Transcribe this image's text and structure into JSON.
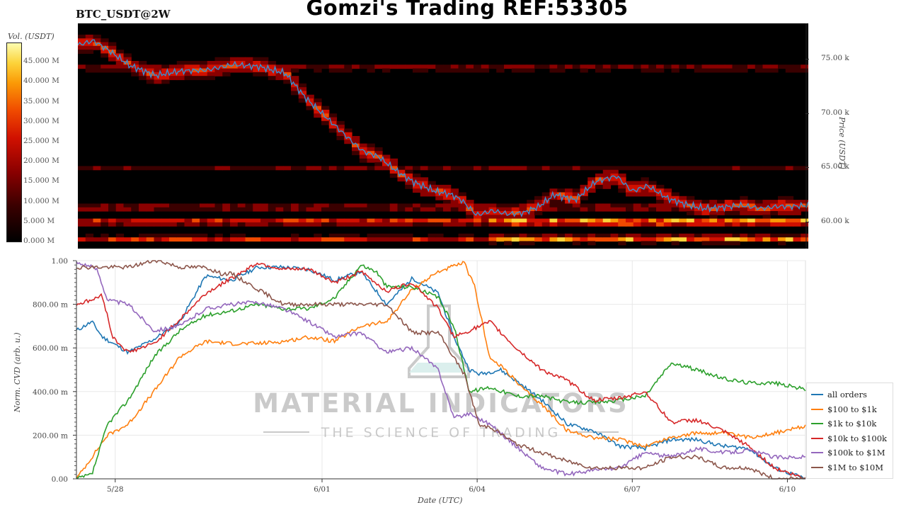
{
  "header": {
    "title": "Gomzi's Trading REF:53305",
    "pair": "BTC_USDT@2W"
  },
  "colorbar": {
    "title": "Vol. (USDT)",
    "ticks": [
      "0.000 M",
      "5.000 M",
      "10.000 M",
      "15.000 M",
      "20.000 M",
      "25.000 M",
      "30.000 M",
      "35.000 M",
      "40.000 M",
      "45.000 M"
    ],
    "min": 0,
    "max": 50000000
  },
  "watermark": {
    "brand": "MATERIAL INDICATORS",
    "tagline": "THE SCIENCE OF TRADING"
  },
  "chart_data": [
    {
      "type": "heatmap",
      "title": "BTC_USDT@2W",
      "ylabel": "Price (USDT)",
      "y_ticks": [
        "60.00 k",
        "65.00 k",
        "70.00 k",
        "75.00 k"
      ],
      "y_tick_values": [
        60000,
        65000,
        70000,
        75000
      ],
      "ylim": [
        57500,
        78300
      ],
      "x_domain": [
        "5/27 06:00",
        "6/10 10:00"
      ],
      "colorscale": [
        "#000000",
        "#3a0000",
        "#8a0000",
        "#d01000",
        "#f04a00",
        "#fb9a06",
        "#fcd33a",
        "#ffffff"
      ],
      "price_line_color": "#3a8fd0",
      "price_series": {
        "x_day": [
          0,
          0.3,
          0.6,
          1.0,
          1.5,
          2.0,
          2.5,
          3.0,
          3.5,
          4.0,
          4.4,
          4.8,
          5.2,
          5.5,
          5.8,
          6.2,
          6.5,
          6.9,
          7.2,
          7.4,
          7.7,
          8.0,
          8.3,
          8.6,
          8.9,
          9.2,
          9.6,
          10.0,
          10.4,
          10.7,
          11.0,
          11.4,
          11.8,
          12.1,
          12.4,
          12.8,
          13.2,
          13.5,
          13.8,
          14.1
        ],
        "price": [
          76300,
          76700,
          75800,
          74400,
          73500,
          73900,
          74000,
          74500,
          74300,
          73700,
          71400,
          69600,
          67800,
          66500,
          66000,
          64500,
          63600,
          62800,
          62500,
          62000,
          60600,
          61000,
          60700,
          60800,
          61400,
          62500,
          62000,
          63700,
          64200,
          62800,
          63300,
          62100,
          61500,
          61200,
          61300,
          61500,
          61200,
          61400,
          61400,
          61500
        ]
      },
      "bands": [
        {
          "price": 61300,
          "intensity": 0.55
        },
        {
          "price": 60000,
          "intensity": 0.85
        },
        {
          "price": 58400,
          "intensity": 0.7
        },
        {
          "price": 65000,
          "intensity": 0.35
        },
        {
          "price": 74200,
          "intensity": 0.45
        }
      ]
    },
    {
      "type": "line",
      "xlabel": "Date (UTC)",
      "ylabel": "Norm. CVD (arb. u.)",
      "x_ticks": [
        "5/28",
        "6/01",
        "6/04",
        "6/07",
        "6/10"
      ],
      "x_tick_days": [
        0.75,
        4.75,
        7.75,
        10.75,
        13.75
      ],
      "x_range_days": [
        0,
        14.1
      ],
      "y_ticks": [
        "0.00",
        "200.00 m",
        "400.00 m",
        "600.00 m",
        "800.00 m",
        "1.00"
      ],
      "ylim": [
        0,
        1
      ],
      "grid": true,
      "legend_position": "right",
      "series": [
        {
          "name": "all orders",
          "color": "#1f77b4",
          "x": [
            0,
            0.3,
            0.5,
            1.0,
            1.5,
            2.0,
            2.5,
            3.0,
            3.5,
            4.0,
            4.5,
            5.0,
            5.5,
            6.0,
            6.5,
            7.0,
            7.3,
            7.6,
            7.8,
            8.2,
            8.5,
            9.0,
            9.5,
            10.0,
            10.5,
            11.0,
            11.5,
            12.0,
            12.5,
            13.0,
            13.5,
            14.1
          ],
          "y": [
            0.68,
            0.72,
            0.65,
            0.58,
            0.64,
            0.72,
            0.93,
            0.91,
            0.97,
            0.97,
            0.96,
            0.91,
            0.95,
            0.8,
            0.92,
            0.85,
            0.65,
            0.5,
            0.48,
            0.5,
            0.45,
            0.36,
            0.25,
            0.22,
            0.15,
            0.14,
            0.18,
            0.18,
            0.15,
            0.14,
            0.05,
            0.0
          ]
        },
        {
          "name": "$100 to $1k",
          "color": "#ff7f0e",
          "x": [
            0,
            0.3,
            0.6,
            1.0,
            1.5,
            2.0,
            2.5,
            3.0,
            3.5,
            4.0,
            4.5,
            5.0,
            5.5,
            6.0,
            6.5,
            7.0,
            7.5,
            7.7,
            8.0,
            8.3,
            8.6,
            9.0,
            9.5,
            10.0,
            10.5,
            11.0,
            11.5,
            12.0,
            12.5,
            13.0,
            13.5,
            14.1
          ],
          "y": [
            0.0,
            0.1,
            0.2,
            0.25,
            0.4,
            0.56,
            0.63,
            0.62,
            0.62,
            0.63,
            0.65,
            0.63,
            0.7,
            0.72,
            0.87,
            0.95,
            0.99,
            0.88,
            0.55,
            0.5,
            0.42,
            0.34,
            0.22,
            0.19,
            0.18,
            0.15,
            0.19,
            0.21,
            0.21,
            0.19,
            0.21,
            0.24
          ]
        },
        {
          "name": "$1k to $10k",
          "color": "#2ca02c",
          "x": [
            0,
            0.3,
            0.6,
            1.0,
            1.5,
            2.0,
            2.5,
            3.0,
            3.5,
            4.0,
            4.5,
            5.0,
            5.5,
            5.8,
            6.0,
            6.5,
            7.0,
            7.3,
            7.6,
            8.0,
            8.5,
            9.0,
            9.5,
            10.0,
            10.5,
            11.0,
            11.5,
            12.0,
            12.5,
            13.0,
            13.5,
            14.1
          ],
          "y": [
            0.0,
            0.02,
            0.25,
            0.36,
            0.56,
            0.68,
            0.75,
            0.77,
            0.8,
            0.78,
            0.78,
            0.83,
            0.98,
            0.95,
            0.88,
            0.88,
            0.83,
            0.7,
            0.4,
            0.42,
            0.38,
            0.38,
            0.35,
            0.35,
            0.36,
            0.38,
            0.53,
            0.5,
            0.46,
            0.44,
            0.44,
            0.41
          ]
        },
        {
          "name": "$10k to $100k",
          "color": "#d62728",
          "x": [
            0,
            0.3,
            0.5,
            0.7,
            1.0,
            1.5,
            2.0,
            2.5,
            3.0,
            3.5,
            4.0,
            4.5,
            5.0,
            5.5,
            6.0,
            6.5,
            7.0,
            7.3,
            7.6,
            8.0,
            8.5,
            9.0,
            9.5,
            10.0,
            10.5,
            11.0,
            11.5,
            12.0,
            12.5,
            13.0,
            13.5,
            14.1
          ],
          "y": [
            0.8,
            0.82,
            0.84,
            0.65,
            0.58,
            0.62,
            0.73,
            0.85,
            0.92,
            0.99,
            0.96,
            0.96,
            0.9,
            0.95,
            0.86,
            0.9,
            0.78,
            0.65,
            0.68,
            0.72,
            0.6,
            0.5,
            0.45,
            0.36,
            0.37,
            0.4,
            0.26,
            0.27,
            0.22,
            0.15,
            0.05,
            0.0
          ]
        },
        {
          "name": "$100k to $1M",
          "color": "#9467bd",
          "x": [
            0,
            0.2,
            0.4,
            0.6,
            1.0,
            1.5,
            2.0,
            2.5,
            3.0,
            3.5,
            4.0,
            4.5,
            5.0,
            5.5,
            6.0,
            6.5,
            7.0,
            7.3,
            7.6,
            8.0,
            8.5,
            9.0,
            9.5,
            10.0,
            10.5,
            11.0,
            11.5,
            12.0,
            12.5,
            13.0,
            13.5,
            14.1
          ],
          "y": [
            0.99,
            0.98,
            0.96,
            0.82,
            0.8,
            0.68,
            0.7,
            0.78,
            0.8,
            0.81,
            0.78,
            0.72,
            0.65,
            0.67,
            0.58,
            0.6,
            0.5,
            0.28,
            0.3,
            0.25,
            0.15,
            0.05,
            0.02,
            0.04,
            0.05,
            0.12,
            0.1,
            0.14,
            0.12,
            0.13,
            0.1,
            0.1
          ]
        },
        {
          "name": "$1M to $10M",
          "color": "#8c564b",
          "x": [
            0,
            0.5,
            1.0,
            1.5,
            1.6,
            2.0,
            2.5,
            2.8,
            3.0,
            4.0,
            4.5,
            5.0,
            5.5,
            6.0,
            6.5,
            7.0,
            7.5,
            7.8,
            8.0,
            8.5,
            9.0,
            9.5,
            10.0,
            10.5,
            11.0,
            11.5,
            12.0,
            12.5,
            13.0,
            13.5,
            14.0,
            14.1
          ],
          "y": [
            0.97,
            0.97,
            0.97,
            1.0,
            1.0,
            0.97,
            0.97,
            0.94,
            0.94,
            0.8,
            0.8,
            0.8,
            0.8,
            0.8,
            0.67,
            0.67,
            0.48,
            0.24,
            0.24,
            0.16,
            0.12,
            0.08,
            0.05,
            0.05,
            0.05,
            0.1,
            0.1,
            0.05,
            0.05,
            0.0,
            0.0,
            0.0
          ]
        }
      ]
    }
  ]
}
